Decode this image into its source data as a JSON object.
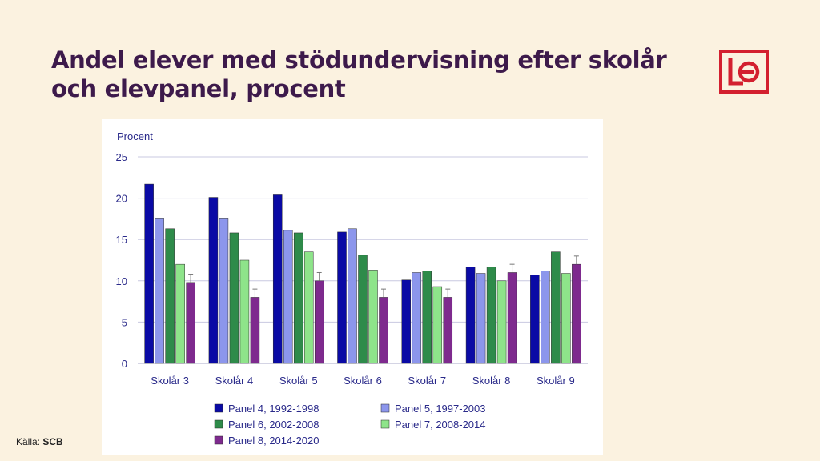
{
  "slide": {
    "title": "Andel elever med stödundervisning efter skolår och elevpanel, procent",
    "source_label": "Källa:",
    "source_value": "SCB",
    "logo_icon": "lo-logo"
  },
  "chart_data": {
    "type": "bar",
    "ylabel": "Procent",
    "ylim": [
      0,
      25
    ],
    "yticks": [
      0,
      5,
      10,
      15,
      20,
      25
    ],
    "grid": true,
    "legend_position": "bottom",
    "categories": [
      "Skolår 3",
      "Skolår 4",
      "Skolår 5",
      "Skolår 6",
      "Skolår 7",
      "Skolår 8",
      "Skolår 9"
    ],
    "series": [
      {
        "name": "Panel 4, 1992-1998",
        "color": "#0a0aa5",
        "values": [
          21.7,
          20.1,
          20.4,
          15.9,
          10.1,
          11.7,
          10.7
        ]
      },
      {
        "name": "Panel 5, 1997-2003",
        "color": "#8c96ec",
        "values": [
          17.5,
          17.5,
          16.1,
          16.3,
          11.0,
          10.9,
          11.2
        ]
      },
      {
        "name": "Panel 6, 2002-2008",
        "color": "#2e8b4a",
        "values": [
          16.3,
          15.8,
          15.8,
          13.1,
          11.2,
          11.7,
          13.5
        ]
      },
      {
        "name": "Panel 7, 2008-2014",
        "color": "#8ee48a",
        "values": [
          12.0,
          12.5,
          13.5,
          11.3,
          9.3,
          10.0,
          10.9
        ]
      },
      {
        "name": "Panel 8, 2014-2020",
        "color": "#7e2a8e",
        "values": [
          9.8,
          8.0,
          10.0,
          8.0,
          8.0,
          11.0,
          12.0
        ],
        "error": [
          1.0,
          1.0,
          1.0,
          1.0,
          1.0,
          1.0,
          1.0
        ]
      }
    ],
    "colors": {
      "grid": "#c8c8e0",
      "axis_text": "#2a2a8a"
    }
  }
}
